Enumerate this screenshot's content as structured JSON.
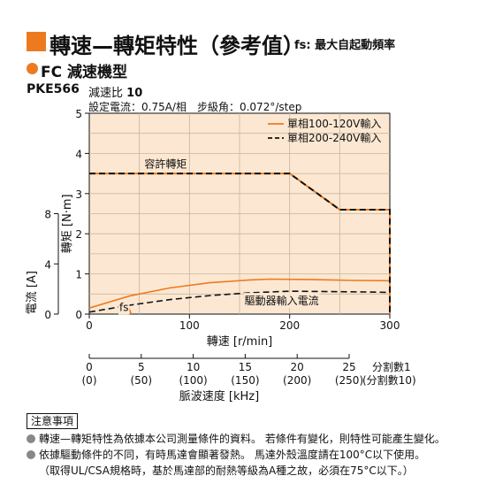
{
  "header": {
    "title": "轉速—轉矩特性（參考值）",
    "subtitle": "fs: 最大自起動頻率",
    "section": "FC 減速機型",
    "model": "PKE566",
    "ratio_label": "減速比",
    "ratio_value": "10",
    "setting": "設定電流：0.75A/相　步級角：0.072°/step"
  },
  "chart_data": {
    "type": "line",
    "x_label": "轉速 [r/min]",
    "y_label_torque": "轉矩 [N·m]",
    "y_label_current": "電流 [A]",
    "xlim": [
      0,
      300
    ],
    "ylim": [
      0,
      5
    ],
    "current_ylim": [
      0,
      8
    ],
    "x_ticks": [
      0,
      100,
      200,
      300
    ],
    "y_ticks": [
      0,
      1,
      2,
      3,
      4,
      5
    ],
    "current_ticks": [
      0,
      4,
      8
    ],
    "grid": true,
    "legend_position": "top-right",
    "series": [
      {
        "name": "單相100-120V輸入",
        "role": "current",
        "style": "solid",
        "color": "#ee7a1f",
        "x": [
          0,
          40,
          80,
          120,
          160,
          180,
          220,
          260,
          300
        ],
        "y": [
          0.15,
          0.45,
          0.65,
          0.78,
          0.85,
          0.87,
          0.86,
          0.84,
          0.83
        ]
      },
      {
        "name": "單相200-240V輸入",
        "role": "current",
        "style": "dashed",
        "color": "#111111",
        "x": [
          0,
          40,
          80,
          120,
          160,
          200,
          240,
          280,
          300
        ],
        "y": [
          0.05,
          0.22,
          0.36,
          0.46,
          0.53,
          0.57,
          0.56,
          0.55,
          0.54
        ]
      },
      {
        "name": "單相100-120V輸入",
        "role": "torque",
        "style": "solid",
        "color": "#ee7a1f",
        "x": [
          0,
          200,
          250,
          300,
          300
        ],
        "y": [
          3.5,
          3.5,
          2.6,
          2.6,
          0
        ]
      },
      {
        "name": "單相200-240V輸入",
        "role": "torque",
        "style": "dashed",
        "color": "#111111",
        "x": [
          0,
          200,
          250,
          300,
          300
        ],
        "y": [
          3.5,
          3.5,
          2.6,
          2.6,
          0
        ]
      },
      {
        "name": "fs",
        "role": "fs",
        "style": "solid",
        "color": "#ee7a1f",
        "x": [
          37,
          42
        ],
        "y": [
          0.3,
          0.0
        ]
      }
    ],
    "annotations": [
      {
        "text": "容許轉矩",
        "x": 55,
        "y": 3.65
      },
      {
        "text": "驅動器輸入電流",
        "x": 155,
        "y": 0.24
      },
      {
        "text": "fs",
        "x": 30,
        "y": 0.08
      }
    ],
    "pulse_axis": {
      "label": "脈波速度 [kHz]",
      "div1_label": "分割數1",
      "div10_label": "(分割數10)",
      "ticks": [
        {
          "top": "0",
          "bottom": "(0)"
        },
        {
          "top": "5",
          "bottom": "(50)"
        },
        {
          "top": "10",
          "bottom": "(100)"
        },
        {
          "top": "15",
          "bottom": "(150)"
        },
        {
          "top": "20",
          "bottom": "(200)"
        },
        {
          "top": "25",
          "bottom": "(250)"
        }
      ]
    }
  },
  "notes": {
    "box_label": "注意事項",
    "line1": "轉速—轉矩特性為依據本公司測量條件的資料。 若條件有變化，則特性可能產生變化。",
    "line2": "依據驅動條件的不同，有時馬達會顯著發熱。 馬達外殼溫度請在100°C以下使用。",
    "line3": "（取得UL/CSA規格時，基於馬達部的耐熱等級為A種之故，必須在75°C以下。）"
  }
}
